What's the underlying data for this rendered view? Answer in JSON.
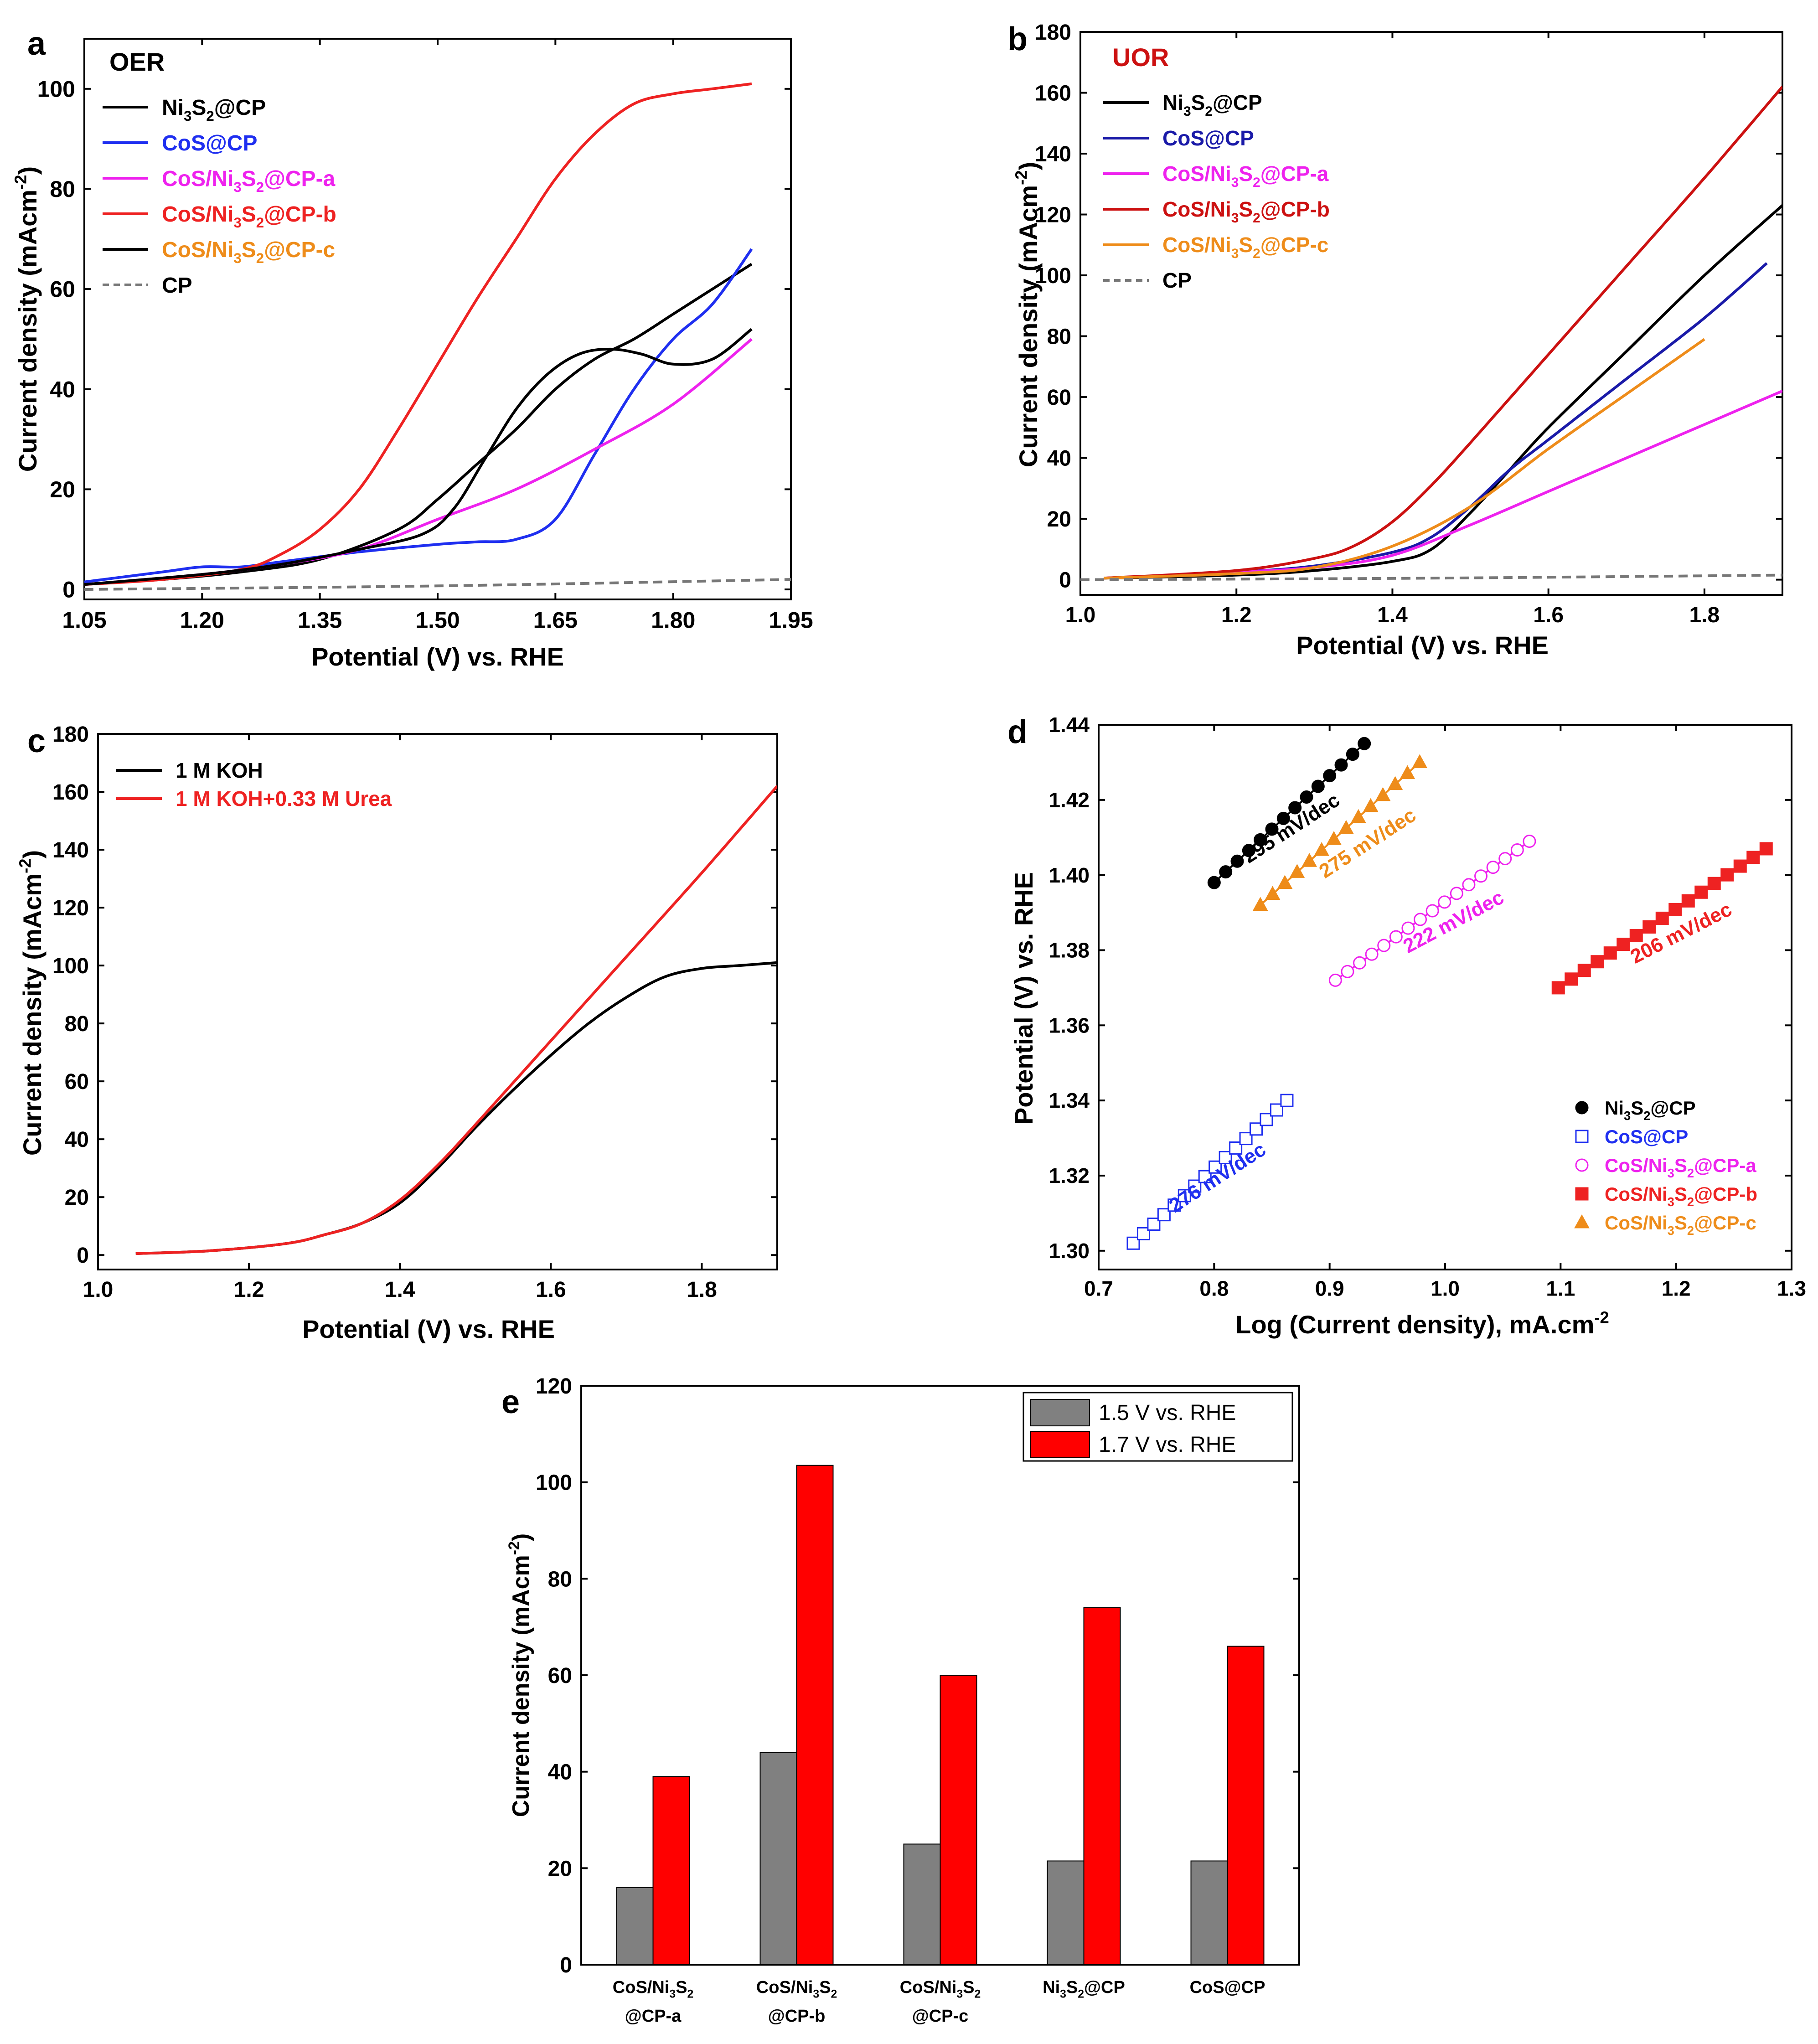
{
  "figure_colors": {
    "black": "#000000",
    "blue": "#1f2ff0",
    "navy_blue": "#1a1aa8",
    "magenta": "#ee22ee",
    "red": "#ee2222",
    "dark_red": "#cc1111",
    "orange": "#ee8c1a",
    "gray": "#777777",
    "bar_gray": "#808080",
    "bar_red": "#ff0000"
  },
  "chart_data": [
    {
      "panel": "a",
      "type": "line",
      "title": "OER",
      "xlabel": "Potential (V) vs. RHE",
      "ylabel": "Current density (mAcm-2)",
      "ylabel_parts": {
        "main": "Current density (mAcm",
        "sup": "-2",
        "end": ")"
      },
      "xlim": [
        1.05,
        1.95
      ],
      "ylim": [
        -2,
        110
      ],
      "xticks": [
        "1.05",
        "1.20",
        "1.35",
        "1.50",
        "1.65",
        "1.80",
        "1.95"
      ],
      "yticks": [
        "0",
        "20",
        "40",
        "60",
        "80",
        "100"
      ],
      "legend": [
        {
          "parts": [
            "Ni",
            "3",
            "S",
            "2",
            "@CP"
          ],
          "text_color": "#000000",
          "line_color": "#000000",
          "dash": false
        },
        {
          "parts": [
            "CoS@CP"
          ],
          "text_color": "#1f2ff0",
          "line_color": "#1f2ff0",
          "dash": false
        },
        {
          "parts": [
            "CoS/Ni",
            "3",
            "S",
            "2",
            "@CP-a"
          ],
          "text_color": "#ee22ee",
          "line_color": "#ee22ee",
          "dash": false
        },
        {
          "parts": [
            "CoS/Ni",
            "3",
            "S",
            "2",
            "@CP-b"
          ],
          "text_color": "#ee2222",
          "line_color": "#ee2222",
          "dash": false
        },
        {
          "parts": [
            "CoS/Ni",
            "3",
            "S",
            "2",
            "@CP-c"
          ],
          "text_color": "#ee8c1a",
          "line_color": "#000000",
          "dash": false
        },
        {
          "parts": [
            "CP"
          ],
          "text_color": "#000000",
          "line_color": "#777777",
          "dash": true
        }
      ],
      "series": [
        {
          "name": "Ni3S2@CP",
          "color": "#000000",
          "dash": false,
          "x": [
            1.05,
            1.15,
            1.25,
            1.35,
            1.45,
            1.5,
            1.55,
            1.6,
            1.65,
            1.7,
            1.75,
            1.8,
            1.85,
            1.9
          ],
          "y": [
            1,
            2,
            3.5,
            6,
            12,
            18,
            25,
            32,
            40,
            46,
            50,
            55,
            60,
            65
          ]
        },
        {
          "name": "CoS@CP",
          "color": "#1f2ff0",
          "dash": false,
          "x": [
            1.05,
            1.15,
            1.2,
            1.25,
            1.3,
            1.4,
            1.5,
            1.55,
            1.6,
            1.65,
            1.7,
            1.75,
            1.8,
            1.85,
            1.9
          ],
          "y": [
            1.5,
            3.5,
            4.5,
            4.5,
            5.5,
            7.5,
            9,
            9.5,
            10,
            14,
            27,
            40,
            50,
            57,
            68
          ]
        },
        {
          "name": "CoS/Ni3S2@CP-a",
          "color": "#ee22ee",
          "dash": false,
          "x": [
            1.05,
            1.2,
            1.3,
            1.4,
            1.5,
            1.6,
            1.7,
            1.8,
            1.9
          ],
          "y": [
            1,
            3,
            5,
            8,
            14,
            20,
            28,
            37,
            50
          ]
        },
        {
          "name": "CoS/Ni3S2@CP-b",
          "color": "#ee2222",
          "dash": false,
          "x": [
            1.05,
            1.15,
            1.25,
            1.3,
            1.35,
            1.4,
            1.45,
            1.5,
            1.55,
            1.6,
            1.65,
            1.7,
            1.75,
            1.8,
            1.85,
            1.9
          ],
          "y": [
            1,
            2,
            4,
            7,
            12,
            20,
            32,
            45,
            58,
            70,
            82,
            91,
            97,
            99,
            100,
            101
          ]
        },
        {
          "name": "CoS/Ni3S2@CP-c",
          "color": "#000000",
          "dash": false,
          "x": [
            1.05,
            1.2,
            1.3,
            1.4,
            1.48,
            1.52,
            1.56,
            1.6,
            1.64,
            1.68,
            1.72,
            1.76,
            1.8,
            1.85,
            1.9
          ],
          "y": [
            1,
            3,
            5,
            8,
            11,
            16,
            26,
            36,
            43,
            47,
            48,
            47,
            45,
            46,
            52
          ]
        },
        {
          "name": "CP",
          "color": "#777777",
          "dash": true,
          "x": [
            1.05,
            1.5,
            1.95
          ],
          "y": [
            0,
            0.7,
            2
          ]
        }
      ]
    },
    {
      "panel": "b",
      "type": "line",
      "title": "UOR",
      "xlabel": "Potential (V) vs. RHE",
      "ylabel": "Current density (mAcm-2)",
      "ylabel_parts": {
        "main": "Current density (mAcm",
        "sup": "-2",
        "end": ")"
      },
      "xlim": [
        1.0,
        1.9
      ],
      "ylim": [
        -5,
        180
      ],
      "xticks": [
        "1.0",
        "1.2",
        "1.4",
        "1.6",
        "1.8"
      ],
      "yticks": [
        "0",
        "20",
        "40",
        "60",
        "80",
        "100",
        "120",
        "140",
        "160",
        "180"
      ],
      "legend": [
        {
          "parts": [
            "Ni",
            "3",
            "S",
            "2",
            "@CP"
          ],
          "text_color": "#000000",
          "line_color": "#000000",
          "dash": false
        },
        {
          "parts": [
            "CoS@CP"
          ],
          "text_color": "#1a1aa8",
          "line_color": "#1a1aa8",
          "dash": false
        },
        {
          "parts": [
            "CoS/Ni",
            "3",
            "S",
            "2",
            "@CP-a"
          ],
          "text_color": "#ee22ee",
          "line_color": "#ee22ee",
          "dash": false
        },
        {
          "parts": [
            "CoS/Ni",
            "3",
            "S",
            "2",
            "@CP-b"
          ],
          "text_color": "#cc1111",
          "line_color": "#cc1111",
          "dash": false
        },
        {
          "parts": [
            "CoS/Ni",
            "3",
            "S",
            "2",
            "@CP-c"
          ],
          "text_color": "#ee8c1a",
          "line_color": "#ee8c1a",
          "dash": false
        },
        {
          "parts": [
            "CP"
          ],
          "text_color": "#000000",
          "line_color": "#777777",
          "dash": true
        }
      ],
      "series": [
        {
          "name": "Ni3S2@CP",
          "color": "#000000",
          "dash": false,
          "x": [
            1.03,
            1.2,
            1.3,
            1.4,
            1.45,
            1.5,
            1.55,
            1.6,
            1.7,
            1.8,
            1.9
          ],
          "y": [
            0.5,
            1.5,
            3,
            6,
            10,
            22,
            36,
            50,
            75,
            100,
            123
          ]
        },
        {
          "name": "CoS@CP",
          "color": "#1a1aa8",
          "dash": false,
          "x": [
            1.03,
            1.2,
            1.3,
            1.4,
            1.45,
            1.5,
            1.55,
            1.6,
            1.7,
            1.8,
            1.88
          ],
          "y": [
            0.5,
            2.5,
            4.5,
            9,
            14,
            24,
            36,
            46,
            66,
            86,
            104
          ]
        },
        {
          "name": "CoS/Ni3S2@CP-a",
          "color": "#ee22ee",
          "dash": false,
          "x": [
            1.03,
            1.2,
            1.3,
            1.4,
            1.5,
            1.6,
            1.7,
            1.8,
            1.9
          ],
          "y": [
            0.5,
            2.5,
            4,
            8,
            18,
            29,
            40,
            51,
            62
          ]
        },
        {
          "name": "CoS/Ni3S2@CP-b",
          "color": "#cc1111",
          "dash": false,
          "x": [
            1.03,
            1.2,
            1.3,
            1.35,
            1.4,
            1.45,
            1.5,
            1.6,
            1.7,
            1.8,
            1.9
          ],
          "y": [
            0.5,
            3,
            7,
            11,
            19,
            31,
            45,
            74,
            103,
            132,
            162
          ]
        },
        {
          "name": "CoS/Ni3S2@CP-c",
          "color": "#ee8c1a",
          "dash": false,
          "x": [
            1.03,
            1.2,
            1.3,
            1.4,
            1.5,
            1.6,
            1.7,
            1.8
          ],
          "y": [
            0.5,
            2,
            4,
            11,
            24,
            43,
            61,
            79
          ]
        },
        {
          "name": "CP",
          "color": "#777777",
          "dash": true,
          "x": [
            1.0,
            1.45,
            1.9
          ],
          "y": [
            0,
            0.5,
            1.5
          ]
        }
      ]
    },
    {
      "panel": "c",
      "type": "line",
      "title": "",
      "xlabel": "Potential (V) vs. RHE",
      "ylabel": "Current density (mAcm-2)",
      "ylabel_parts": {
        "main": "Current density (mAcm",
        "sup": "-2",
        "end": ")"
      },
      "xlim": [
        1.0,
        1.9
      ],
      "ylim": [
        -5,
        180
      ],
      "xticks": [
        "1.0",
        "1.2",
        "1.4",
        "1.6",
        "1.8"
      ],
      "yticks": [
        "0",
        "20",
        "40",
        "60",
        "80",
        "100",
        "120",
        "140",
        "160",
        "180"
      ],
      "legend": [
        {
          "parts": [
            "1 M KOH"
          ],
          "text_color": "#000000",
          "line_color": "#000000",
          "dash": false
        },
        {
          "parts": [
            "1 M KOH+0.33 M Urea"
          ],
          "text_color": "#ee2222",
          "line_color": "#ee2222",
          "dash": false
        }
      ],
      "series": [
        {
          "name": "1 M KOH",
          "color": "#000000",
          "dash": false,
          "x": [
            1.05,
            1.15,
            1.25,
            1.3,
            1.35,
            1.4,
            1.45,
            1.5,
            1.55,
            1.6,
            1.65,
            1.7,
            1.75,
            1.8,
            1.85,
            1.9
          ],
          "y": [
            0.5,
            1.5,
            4,
            7,
            11,
            18,
            30,
            44,
            57,
            69,
            80,
            89,
            96,
            99,
            100,
            101
          ]
        },
        {
          "name": "1 M KOH+0.33 M Urea",
          "color": "#ee2222",
          "dash": false,
          "x": [
            1.05,
            1.15,
            1.25,
            1.3,
            1.35,
            1.4,
            1.45,
            1.5,
            1.6,
            1.7,
            1.8,
            1.9
          ],
          "y": [
            0.5,
            1.5,
            4,
            7,
            11,
            19,
            31,
            45,
            74,
            103,
            132,
            162
          ]
        }
      ]
    },
    {
      "panel": "d",
      "type": "scatter",
      "title": "",
      "xlabel": "Log (Current density), mA.cm-2",
      "xlabel_parts": {
        "main": "Log (Current density), mA.cm",
        "sup": "-2"
      },
      "ylabel": "Potential (V) vs. RHE",
      "xlim": [
        0.7,
        1.3
      ],
      "ylim": [
        1.295,
        1.44
      ],
      "xticks": [
        "0.7",
        "0.8",
        "0.9",
        "1.0",
        "1.1",
        "1.2",
        "1.3"
      ],
      "yticks": [
        "1.30",
        "1.32",
        "1.34",
        "1.36",
        "1.38",
        "1.40",
        "1.42",
        "1.44"
      ],
      "legend": [
        {
          "parts": [
            "Ni",
            "3",
            "S",
            "2",
            "@CP"
          ],
          "text_color": "#000000",
          "marker": "circle",
          "filled": true,
          "color": "#000000"
        },
        {
          "parts": [
            "CoS@CP"
          ],
          "text_color": "#1f2ff0",
          "marker": "square",
          "filled": false,
          "color": "#1f2ff0"
        },
        {
          "parts": [
            "CoS/Ni",
            "3",
            "S",
            "2",
            "@CP-a"
          ],
          "text_color": "#ee22ee",
          "marker": "circle",
          "filled": false,
          "color": "#ee22ee"
        },
        {
          "parts": [
            "CoS/Ni",
            "3",
            "S",
            "2",
            "@CP-b"
          ],
          "text_color": "#ee2222",
          "marker": "square",
          "filled": true,
          "color": "#ee2222"
        },
        {
          "parts": [
            "CoS/Ni",
            "3",
            "S",
            "2",
            "@CP-c"
          ],
          "text_color": "#ee8c1a",
          "marker": "triangle",
          "filled": true,
          "color": "#ee8c1a"
        }
      ],
      "series": [
        {
          "name": "Ni3S2@CP",
          "marker": "circle",
          "filled": true,
          "color": "#000000",
          "x_start": 0.8,
          "x_end": 0.93,
          "y_start": 1.398,
          "y_end": 1.435,
          "n": 14,
          "slope_label": "295 mV/dec",
          "label_x": 0.87,
          "label_y": 1.411,
          "label_angle": 33
        },
        {
          "name": "CoS@CP",
          "marker": "square",
          "filled": false,
          "color": "#1f2ff0",
          "x_start": 0.73,
          "x_end": 0.863,
          "y_start": 1.302,
          "y_end": 1.34,
          "n": 16,
          "slope_label": "276 mV/dec",
          "label_x": 0.806,
          "label_y": 1.318,
          "label_angle": 33
        },
        {
          "name": "CoS/Ni3S2@CP-a",
          "marker": "circle",
          "filled": false,
          "color": "#ee22ee",
          "x_start": 0.905,
          "x_end": 1.073,
          "y_start": 1.372,
          "y_end": 1.409,
          "n": 17,
          "slope_label": "222 mV/dec",
          "label_x": 1.01,
          "label_y": 1.386,
          "label_angle": 28
        },
        {
          "name": "CoS/Ni3S2@CP-b",
          "marker": "square",
          "filled": true,
          "color": "#ee2222",
          "x_start": 1.098,
          "x_end": 1.278,
          "y_start": 1.37,
          "y_end": 1.407,
          "n": 17,
          "slope_label": "206 mV/dec",
          "label_x": 1.207,
          "label_y": 1.383,
          "label_angle": 27
        },
        {
          "name": "CoS/Ni3S2@CP-c",
          "marker": "triangle",
          "filled": true,
          "color": "#ee8c1a",
          "x_start": 0.84,
          "x_end": 0.978,
          "y_start": 1.392,
          "y_end": 1.43,
          "n": 14,
          "slope_label": "275 mV/dec",
          "label_x": 0.936,
          "label_y": 1.407,
          "label_angle": 33
        }
      ]
    },
    {
      "panel": "e",
      "type": "bar",
      "title": "",
      "xlabel": "",
      "ylabel": "Current density (mAcm-2)",
      "ylabel_parts": {
        "main": "Current density (mAcm",
        "sup": "-2",
        "end": ")"
      },
      "ylim": [
        0,
        120
      ],
      "yticks": [
        "0",
        "20",
        "40",
        "60",
        "80",
        "100",
        "120"
      ],
      "categories": [
        {
          "line1": [
            "CoS/Ni",
            "3",
            "S",
            "2"
          ],
          "line2": "@CP-a"
        },
        {
          "line1": [
            "CoS/Ni",
            "3",
            "S",
            "2"
          ],
          "line2": "@CP-b"
        },
        {
          "line1": [
            "CoS/Ni",
            "3",
            "S",
            "2"
          ],
          "line2": "@CP-c"
        },
        {
          "line1": [
            "Ni",
            "3",
            "S",
            "2",
            "@CP"
          ],
          "line2": ""
        },
        {
          "line1": [
            "CoS@CP"
          ],
          "line2": ""
        }
      ],
      "series": [
        {
          "name": "1.5 V vs. RHE",
          "color": "#808080",
          "values": [
            16,
            44,
            25,
            21.5,
            21.5
          ]
        },
        {
          "name": "1.7 V vs. RHE",
          "color": "#ff0000",
          "values": [
            39,
            103.5,
            60,
            74,
            66
          ]
        }
      ]
    }
  ]
}
